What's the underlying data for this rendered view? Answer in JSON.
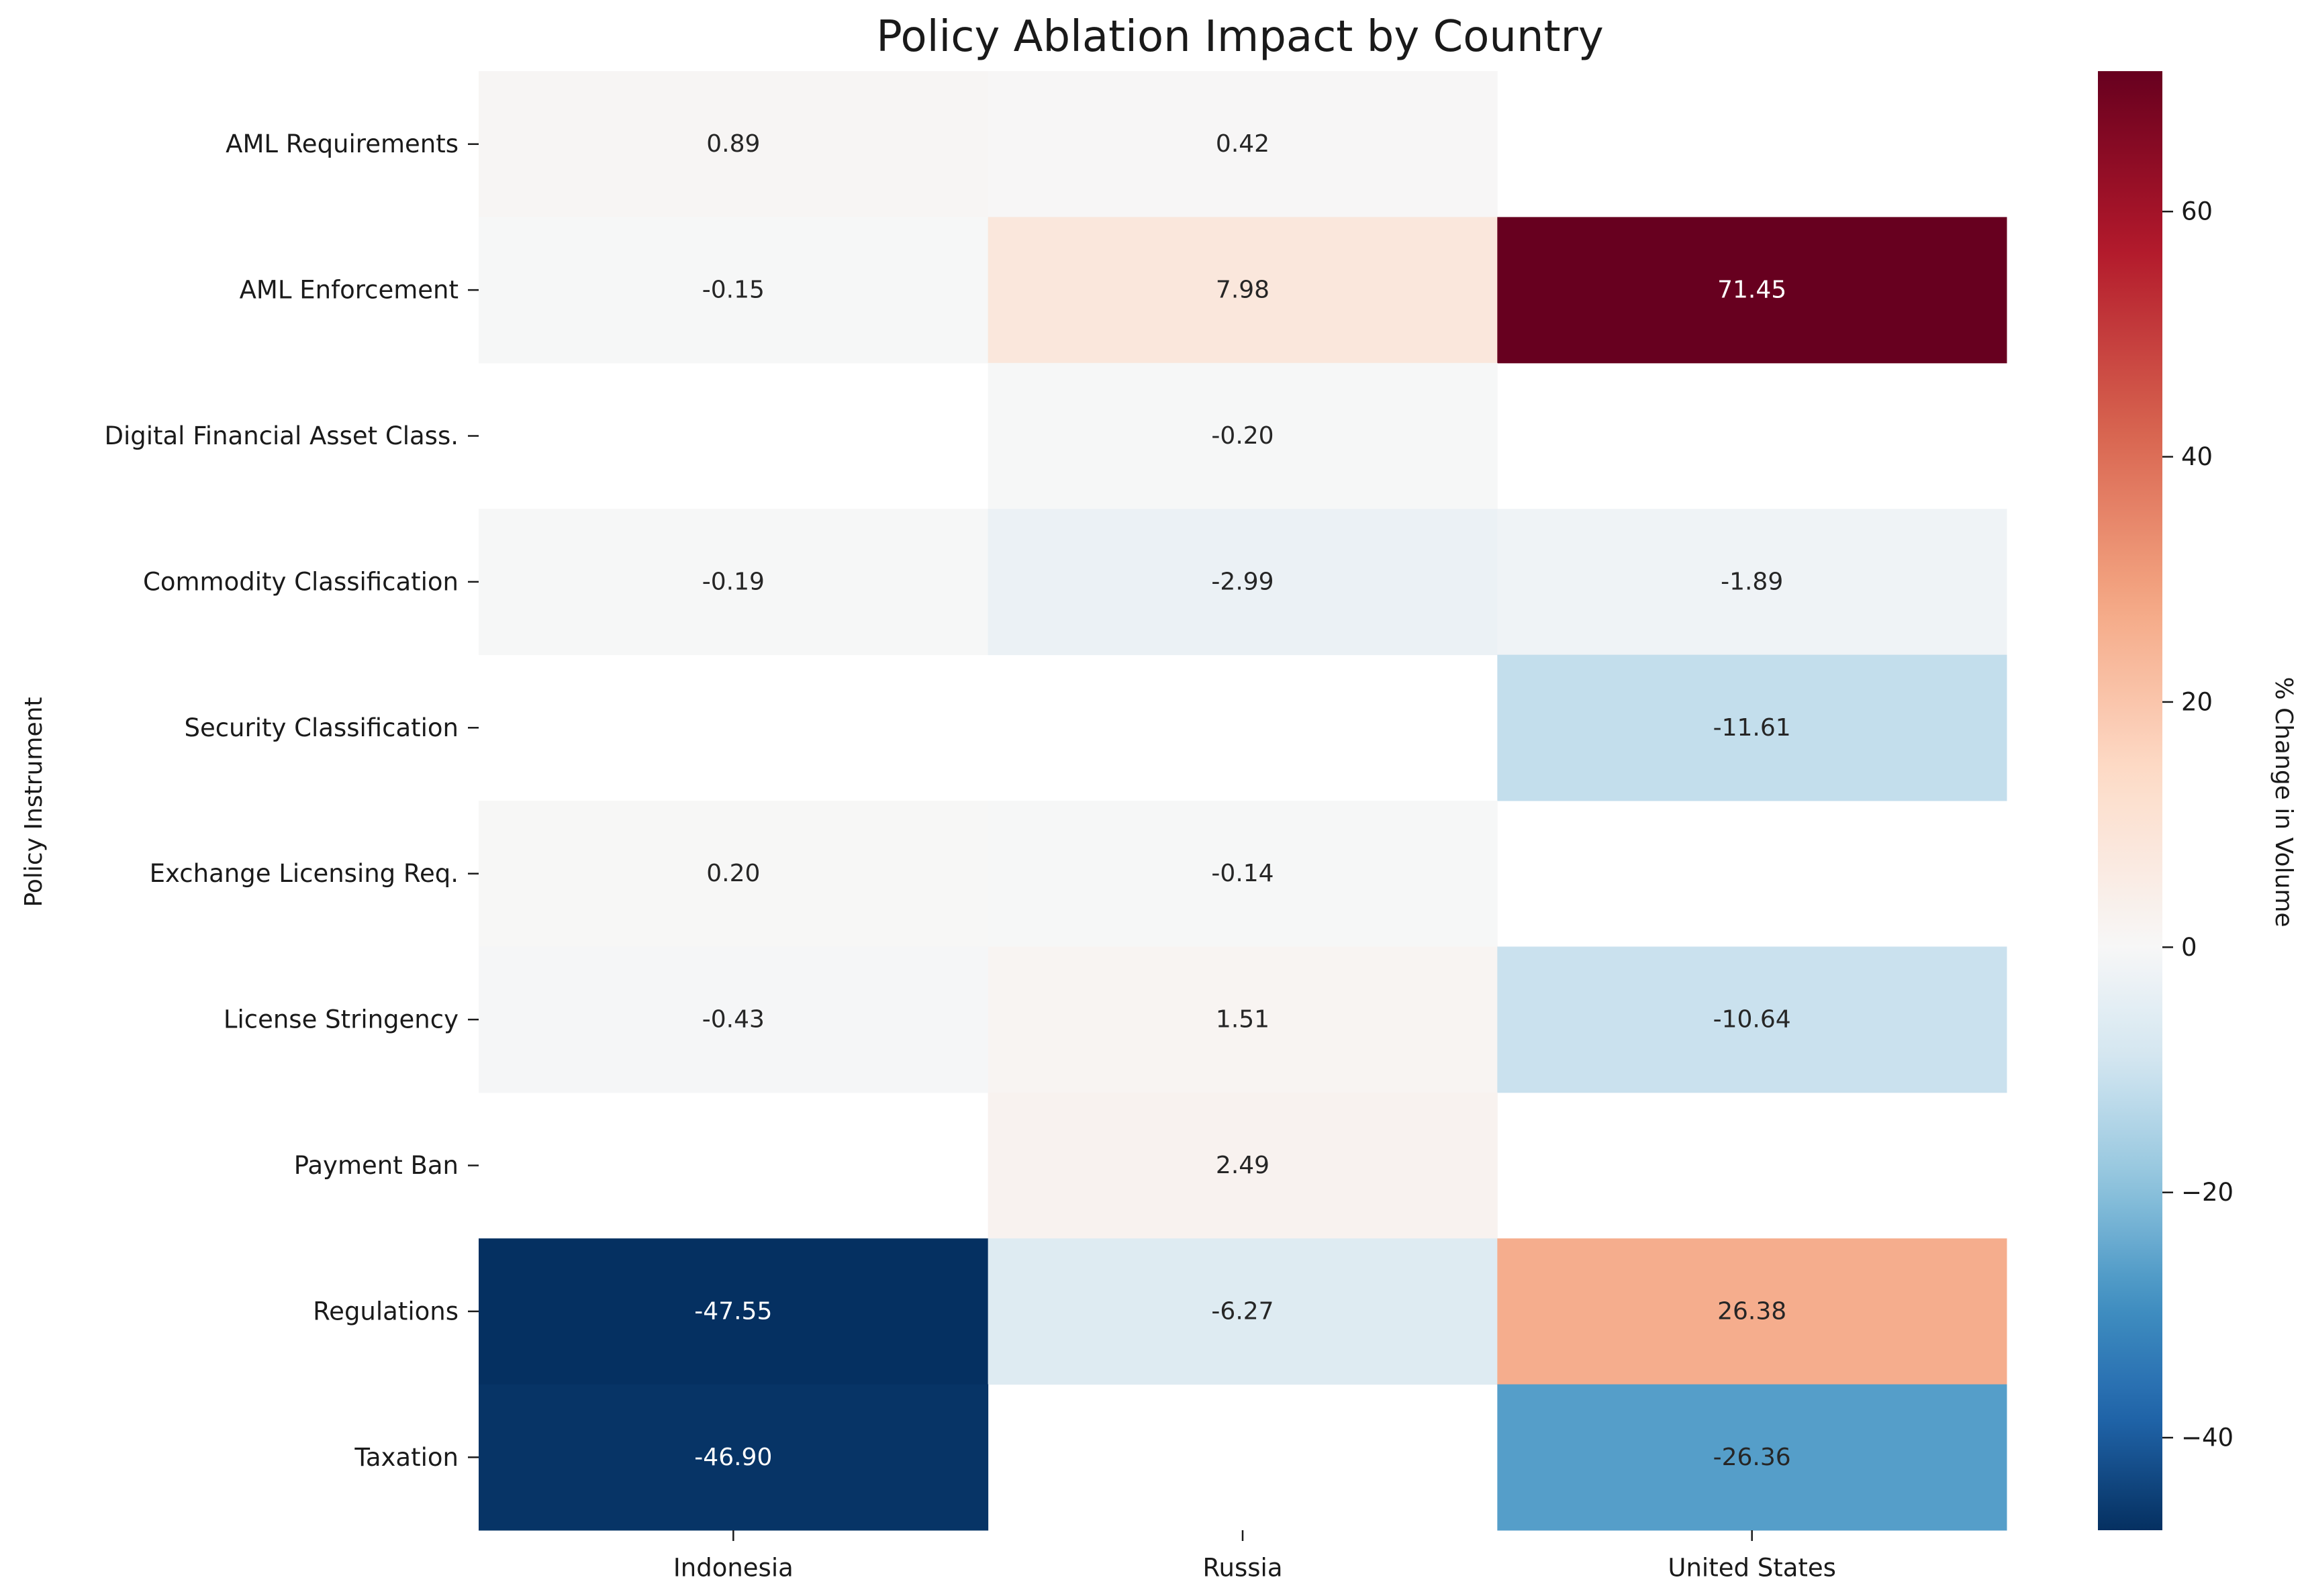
{
  "chart_data": {
    "type": "heatmap",
    "title": "Policy Ablation Impact by Country",
    "xlabel": "",
    "ylabel": "Policy Instrument",
    "colorbar_label": "% Change in Volume",
    "colormap": "RdBu_r",
    "vmin": -47.55,
    "vmax": 71.45,
    "colorbar_ticks": [
      -40,
      -20,
      0,
      20,
      40,
      60
    ],
    "colorbar_tick_labels": [
      "−40",
      "−20",
      "0",
      "20",
      "40",
      "60"
    ],
    "columns": [
      "Indonesia",
      "Russia",
      "United States"
    ],
    "rows": [
      "AML Requirements",
      "AML Enforcement",
      "Digital Financial Asset Class.",
      "Commodity Classification",
      "Security Classification",
      "Exchange Licensing Req.",
      "License Stringency",
      "Payment Ban",
      "Regulations",
      "Taxation"
    ],
    "values": [
      [
        0.89,
        0.42,
        null
      ],
      [
        -0.15,
        7.98,
        71.45
      ],
      [
        null,
        -0.2,
        null
      ],
      [
        -0.19,
        -2.99,
        -1.89
      ],
      [
        null,
        null,
        -11.61
      ],
      [
        0.2,
        -0.14,
        null
      ],
      [
        -0.43,
        1.51,
        -10.64
      ],
      [
        null,
        2.49,
        null
      ],
      [
        -47.55,
        -6.27,
        26.38
      ],
      [
        -46.9,
        null,
        -26.36
      ]
    ],
    "value_format": "2 decimals",
    "grid": false
  }
}
